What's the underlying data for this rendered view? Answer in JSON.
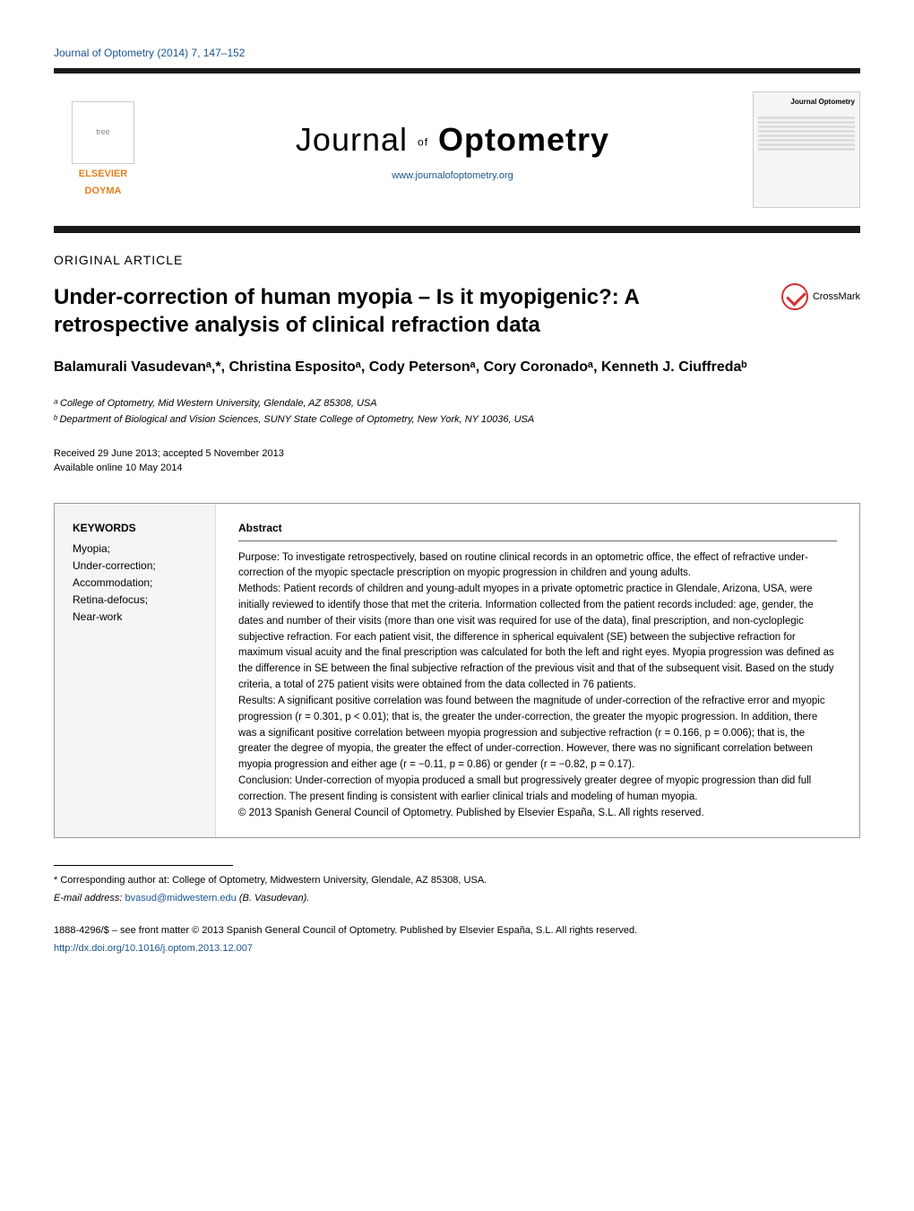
{
  "journal": {
    "reference": "Journal of Optometry (2014) 7, 147–152",
    "titlePrefix": "Journal",
    "titleOf": "of",
    "titleMain": "Optometry",
    "url": "www.journalofoptometry.org",
    "elsevier": "ELSEVIER",
    "doyma": "DOYMA",
    "coverTitle": "Journal Optometry"
  },
  "article": {
    "type": "ORIGINAL ARTICLE",
    "title": "Under-correction of human myopia – Is it myopigenic?: A retrospective analysis of clinical refraction data",
    "crossmark": "CrossMark"
  },
  "authors": {
    "line": "Balamurali Vasudevanᵃ,*, Christina Espositoᵃ, Cody Petersonᵃ, Cory Coronadoᵃ, Kenneth J. Ciuffredaᵇ",
    "affiliations": [
      "ᵃ College of Optometry, Mid Western University, Glendale, AZ 85308, USA",
      "ᵇ Department of Biological and Vision Sciences, SUNY State College of Optometry, New York, NY 10036, USA"
    ]
  },
  "dates": {
    "received": "Received 29 June 2013; accepted 5 November 2013",
    "online": "Available online 10 May 2014"
  },
  "keywords": {
    "header": "KEYWORDS",
    "items": "Myopia;\nUnder-correction;\nAccommodation;\nRetina-defocus;\nNear-work"
  },
  "abstract": {
    "header": "Abstract",
    "purpose": "Purpose: To investigate retrospectively, based on routine clinical records in an optometric office, the effect of refractive under-correction of the myopic spectacle prescription on myopic progression in children and young adults.",
    "methods": "Methods: Patient records of children and young-adult myopes in a private optometric practice in Glendale, Arizona, USA, were initially reviewed to identify those that met the criteria. Information collected from the patient records included: age, gender, the dates and number of their visits (more than one visit was required for use of the data), final prescription, and non-cycloplegic subjective refraction. For each patient visit, the difference in spherical equivalent (SE) between the subjective refraction for maximum visual acuity and the final prescription was calculated for both the left and right eyes. Myopia progression was defined as the difference in SE between the final subjective refraction of the previous visit and that of the subsequent visit. Based on the study criteria, a total of 275 patient visits were obtained from the data collected in 76 patients.",
    "results": "Results: A significant positive correlation was found between the magnitude of under-correction of the refractive error and myopic progression (r = 0.301, p < 0.01); that is, the greater the under-correction, the greater the myopic progression. In addition, there was a significant positive correlation between myopia progression and subjective refraction (r = 0.166, p = 0.006); that is, the greater the degree of myopia, the greater the effect of under-correction. However, there was no significant correlation between myopia progression and either age (r = −0.11, p = 0.86) or gender (r = −0.82, p = 0.17).",
    "conclusion": "Conclusion: Under-correction of myopia produced a small but progressively greater degree of myopic progression than did full correction. The present finding is consistent with earlier clinical trials and modeling of human myopia.",
    "copyright": "© 2013 Spanish General Council of Optometry. Published by Elsevier España, S.L. All rights reserved."
  },
  "footer": {
    "corresponding": "* Corresponding author at: College of Optometry, Midwestern University, Glendale, AZ 85308, USA.",
    "emailLabel": "E-mail address:",
    "email": "bvasud@midwestern.edu",
    "emailAuthor": "(B. Vasudevan).",
    "copyright": "1888-4296/$ – see front matter © 2013 Spanish General Council of Optometry. Published by Elsevier España, S.L. All rights reserved.",
    "doi": "http://dx.doi.org/10.1016/j.optom.2013.12.007"
  },
  "styling": {
    "pageWidth": 1020,
    "pageHeight": 1351,
    "linkColor": "#1a5490",
    "textColor": "#000000",
    "barColor": "#1a1a1a",
    "elsevierColor": "#e67e22",
    "crossmarkColor": "#d32f2f",
    "keywordsBg": "#f5f5f5"
  }
}
